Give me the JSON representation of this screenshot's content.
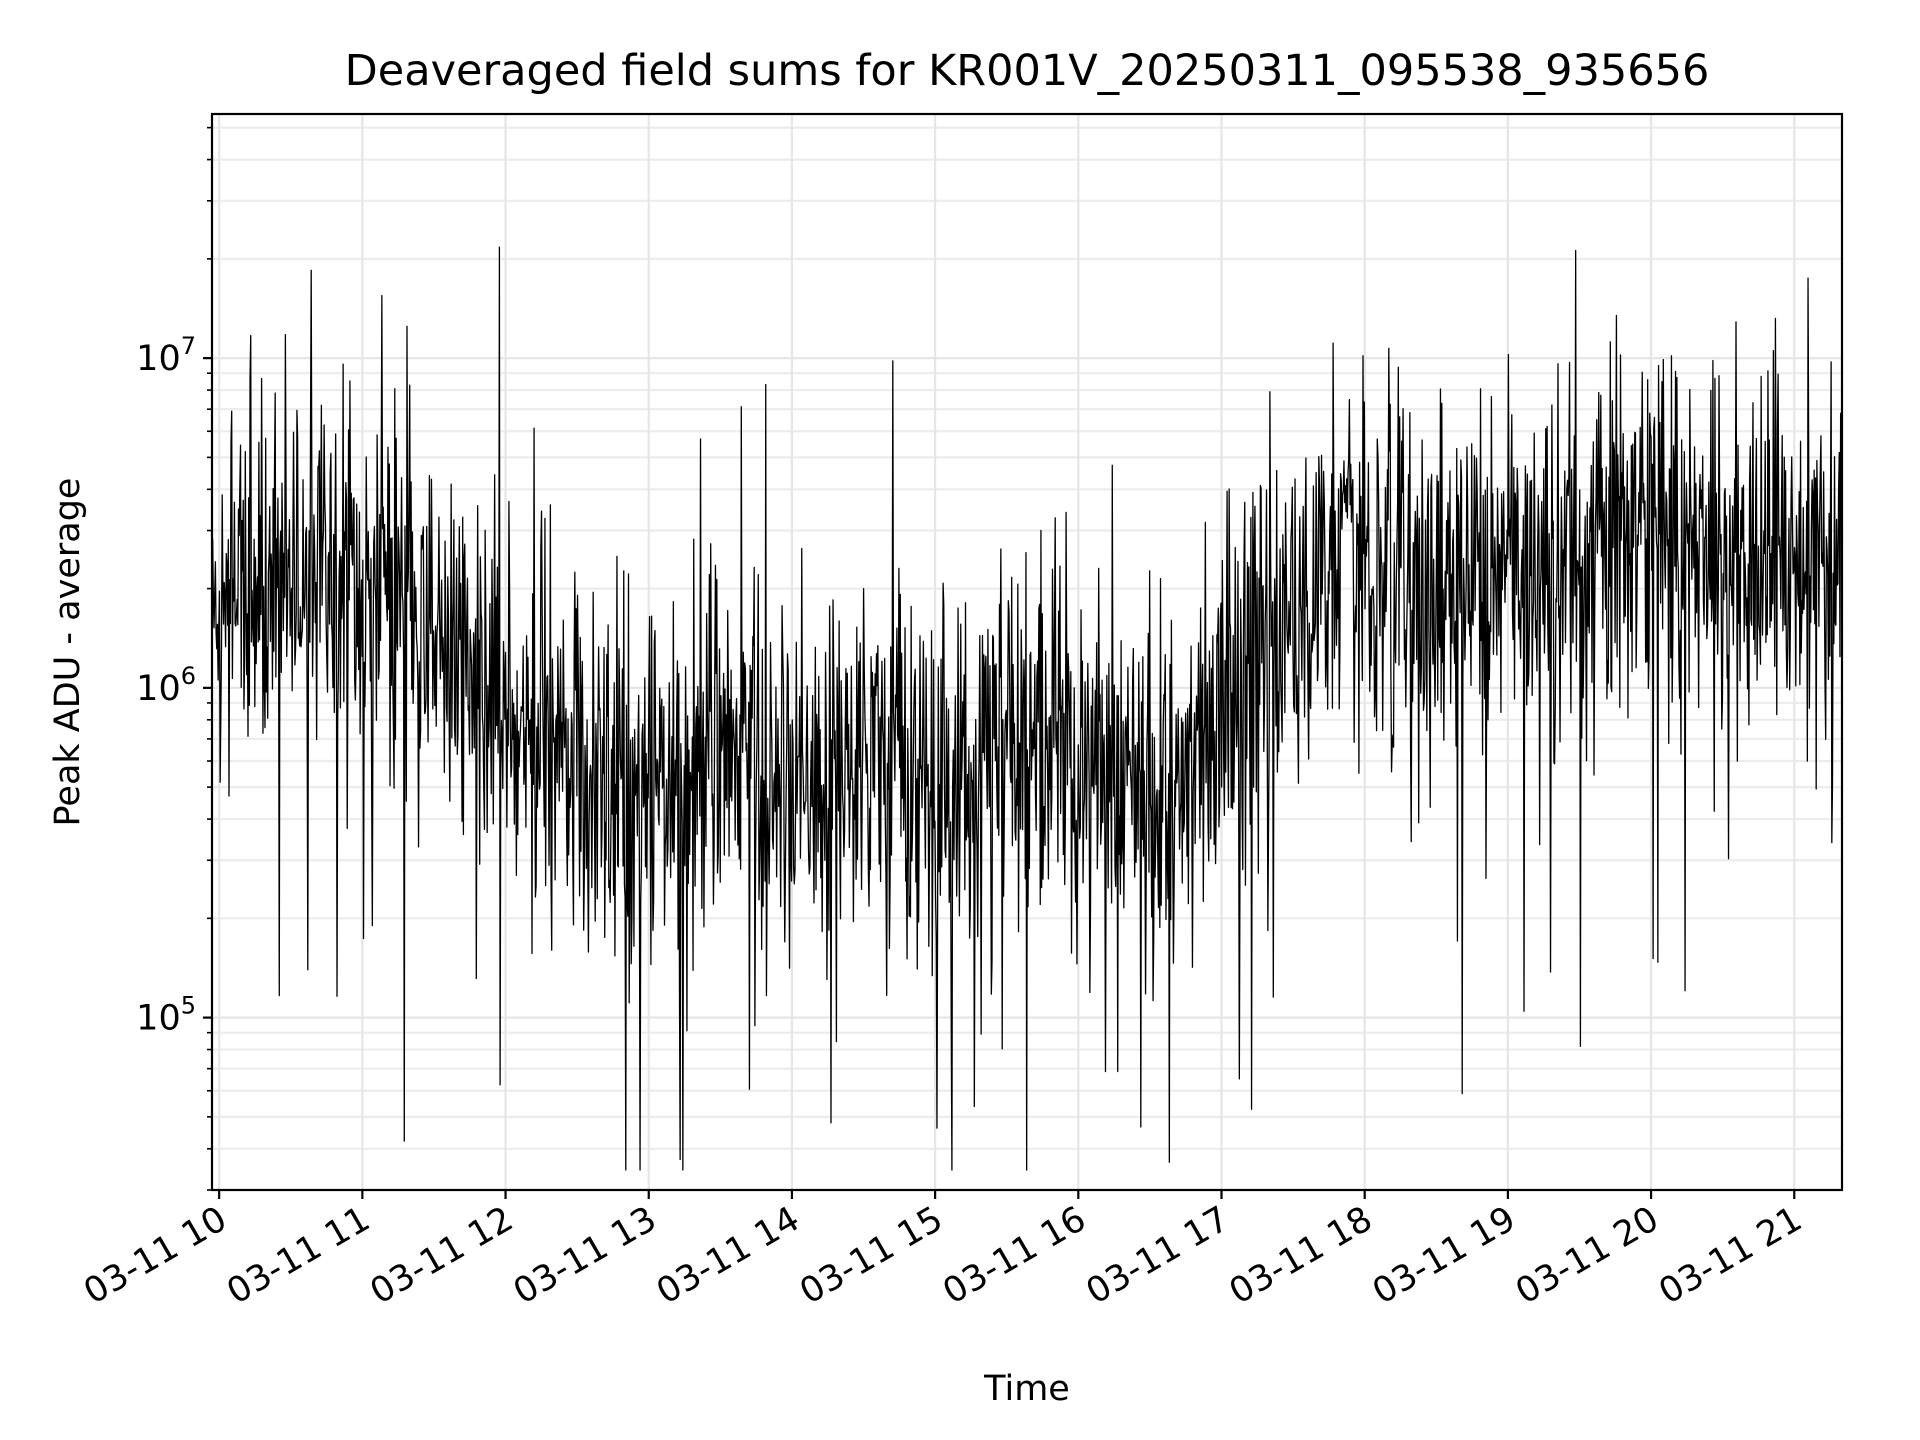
{
  "chart_data": {
    "type": "line",
    "title": "Deaveraged field sums for KR001V_20250311_095538_935656",
    "xlabel": "Time",
    "ylabel": "Peak ADU - average",
    "yscale": "log",
    "ylim": [
      30000,
      55000000
    ],
    "xlim": [
      "2025-03-11 09:57",
      "2025-03-11 21:20"
    ],
    "grid": true,
    "line_color": "#000000",
    "x_ticks": [
      {
        "value": "2025-03-11 10:00",
        "label": "03-11 10"
      },
      {
        "value": "2025-03-11 11:00",
        "label": "03-11 11"
      },
      {
        "value": "2025-03-11 12:00",
        "label": "03-11 12"
      },
      {
        "value": "2025-03-11 13:00",
        "label": "03-11 13"
      },
      {
        "value": "2025-03-11 14:00",
        "label": "03-11 14"
      },
      {
        "value": "2025-03-11 15:00",
        "label": "03-11 15"
      },
      {
        "value": "2025-03-11 16:00",
        "label": "03-11 16"
      },
      {
        "value": "2025-03-11 17:00",
        "label": "03-11 17"
      },
      {
        "value": "2025-03-11 18:00",
        "label": "03-11 18"
      },
      {
        "value": "2025-03-11 19:00",
        "label": "03-11 19"
      },
      {
        "value": "2025-03-11 20:00",
        "label": "03-11 20"
      },
      {
        "value": "2025-03-11 21:00",
        "label": "03-11 21"
      }
    ],
    "y_ticks": [
      {
        "value": 100000,
        "base": "10",
        "exp": "5"
      },
      {
        "value": 1000000,
        "base": "10",
        "exp": "6"
      },
      {
        "value": 10000000,
        "base": "10",
        "exp": "7"
      }
    ],
    "series": [
      {
        "x": [
          "2025-03-11 09:57",
          "2025-03-11 10:07",
          "2025-03-11 10:17",
          "2025-03-11 10:27",
          "2025-03-11 10:37",
          "2025-03-11 10:47",
          "2025-03-11 10:57",
          "2025-03-11 11:07",
          "2025-03-11 11:17",
          "2025-03-11 11:27",
          "2025-03-11 11:37",
          "2025-03-11 11:47",
          "2025-03-11 11:57",
          "2025-03-11 12:07",
          "2025-03-11 12:17",
          "2025-03-11 12:27",
          "2025-03-11 12:37",
          "2025-03-11 12:47",
          "2025-03-11 12:57",
          "2025-03-11 13:07",
          "2025-03-11 13:17",
          "2025-03-11 13:27",
          "2025-03-11 13:37",
          "2025-03-11 13:47",
          "2025-03-11 13:57",
          "2025-03-11 14:07",
          "2025-03-11 14:17",
          "2025-03-11 14:27",
          "2025-03-11 14:37",
          "2025-03-11 14:47",
          "2025-03-11 14:57",
          "2025-03-11 15:07",
          "2025-03-11 15:17",
          "2025-03-11 15:27",
          "2025-03-11 15:37",
          "2025-03-11 15:47",
          "2025-03-11 15:57",
          "2025-03-11 16:07",
          "2025-03-11 16:17",
          "2025-03-11 16:27",
          "2025-03-11 16:37",
          "2025-03-11 16:47",
          "2025-03-11 16:57",
          "2025-03-11 17:07",
          "2025-03-11 17:17",
          "2025-03-11 17:27",
          "2025-03-11 17:37",
          "2025-03-11 17:47",
          "2025-03-11 17:57",
          "2025-03-11 18:07",
          "2025-03-11 18:17",
          "2025-03-11 18:27",
          "2025-03-11 18:37",
          "2025-03-11 18:47",
          "2025-03-11 18:57",
          "2025-03-11 19:07",
          "2025-03-11 19:17",
          "2025-03-11 19:27",
          "2025-03-11 19:37",
          "2025-03-11 19:47",
          "2025-03-11 19:57",
          "2025-03-11 20:07",
          "2025-03-11 20:17",
          "2025-03-11 20:27",
          "2025-03-11 20:37",
          "2025-03-11 20:47",
          "2025-03-11 20:57",
          "2025-03-11 21:07",
          "2025-03-11 21:20"
        ],
        "y": [
          1800000,
          1900000,
          2200000,
          2500000,
          2400000,
          2200000,
          2100000,
          2000000,
          1900000,
          1600000,
          1400000,
          1200000,
          900000,
          750000,
          650000,
          600000,
          520000,
          480000,
          430000,
          480000,
          520000,
          560000,
          600000,
          580000,
          560000,
          520000,
          580000,
          620000,
          600000,
          560000,
          520000,
          540000,
          580000,
          700000,
          760000,
          680000,
          600000,
          560000,
          520000,
          480000,
          450000,
          550000,
          800000,
          1100000,
          1400000,
          1500000,
          1700000,
          2200000,
          2400000,
          2300000,
          2100000,
          2100000,
          2200000,
          2300000,
          2400000,
          2500000,
          2400000,
          2500000,
          2600000,
          2700000,
          2600000,
          2500000,
          2600000,
          2800000,
          2900000,
          2700000,
          2600000,
          2400000,
          2500000
        ]
      }
    ]
  }
}
